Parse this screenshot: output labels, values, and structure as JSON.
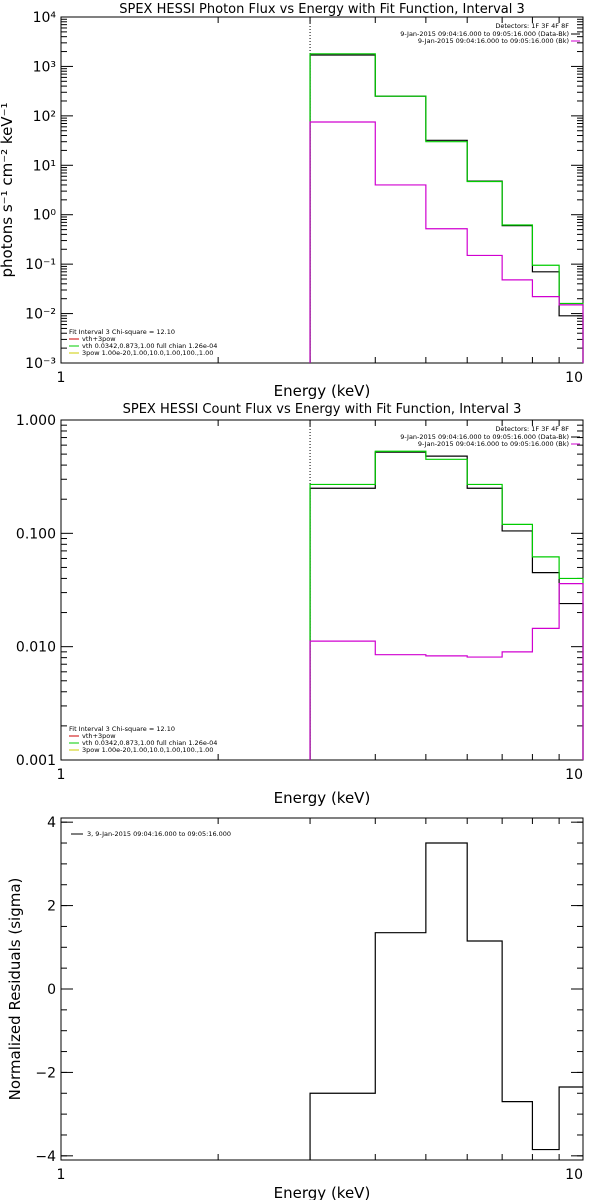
{
  "chart_data": [
    {
      "type": "line",
      "title": "SPEX HESSI Photon Flux vs Energy with Fit Function, Interval 3",
      "xlabel": "Energy (keV)",
      "ylabel": "photons s⁻¹ cm⁻² keV⁻¹",
      "xscale": "log",
      "yscale": "log",
      "xlim": [
        1,
        10
      ],
      "ylim": [
        0.001,
        10000
      ],
      "x_ticks": [
        {
          "value": 1,
          "label": "1"
        },
        {
          "value": 10,
          "label": "10"
        }
      ],
      "y_ticks": [
        {
          "value": 0.001,
          "label": "10⁻³"
        },
        {
          "value": 0.01,
          "label": "10⁻²"
        },
        {
          "value": 0.1,
          "label": "10⁻¹"
        },
        {
          "value": 1,
          "label": "10⁰"
        },
        {
          "value": 10,
          "label": "10¹"
        },
        {
          "value": 100,
          "label": "10²"
        },
        {
          "value": 1000,
          "label": "10³"
        },
        {
          "value": 10000,
          "label": "10⁴"
        }
      ],
      "vertical_marker": 3.0,
      "energy_edges": [
        3.0,
        4.0,
        5.0,
        6.0,
        7.0,
        8.0,
        9.0,
        10.0
      ],
      "legend_top_right": {
        "detectors": "Detectors: 1F 3F 4F 8F",
        "entries": [
          {
            "label": "9-Jan-2015 09:04:16.000 to 09:05:16.000 (Data-Bk)",
            "color": "#000000"
          },
          {
            "label": "9-Jan-2015 09:04:16.000 to 09:05:16.000 (Bk)",
            "color": "#d000d0"
          }
        ]
      },
      "legend_bottom_left": {
        "title": "Fit Interval 3   Chi-square = 12.10",
        "entries": [
          {
            "label": "vth+3pow",
            "color": "#cc0000"
          },
          {
            "label": "vth 0.0342,0.873,1.00  full chian 1.26e-04",
            "color": "#00cc00"
          },
          {
            "label": "3pow 1.00e-20,1.00,10.0,1.00,100.,1.00",
            "color": "#cccc00"
          }
        ]
      },
      "series": [
        {
          "name": "Data-Bk",
          "color": "#000000",
          "values": [
            1700,
            250,
            32,
            4.8,
            0.6,
            0.07,
            0.009
          ]
        },
        {
          "name": "vth",
          "color": "#00cc00",
          "values": [
            1800,
            250,
            30,
            4.7,
            0.62,
            0.095,
            0.016
          ]
        },
        {
          "name": "Bk",
          "color": "#d000d0",
          "values": [
            75,
            4,
            0.52,
            0.15,
            0.048,
            0.022,
            0.015
          ]
        }
      ]
    },
    {
      "type": "line",
      "title": "SPEX HESSI Count Flux vs Energy with Fit Function, Interval 3",
      "xlabel": "Energy (keV)",
      "xscale": "log",
      "yscale": "log",
      "xlim": [
        1,
        10
      ],
      "ylim": [
        0.001,
        1.0
      ],
      "x_ticks": [
        {
          "value": 1,
          "label": "1"
        },
        {
          "value": 10,
          "label": "10"
        }
      ],
      "y_ticks": [
        {
          "value": 0.001,
          "label": "0.001"
        },
        {
          "value": 0.01,
          "label": "0.010"
        },
        {
          "value": 0.1,
          "label": "0.100"
        },
        {
          "value": 1,
          "label": "1.000"
        }
      ],
      "vertical_marker": 3.0,
      "energy_edges": [
        3.0,
        4.0,
        5.0,
        6.0,
        7.0,
        8.0,
        9.0,
        10.0
      ],
      "legend_top_right": {
        "detectors": "Detectors: 1F 3F 4F 8F",
        "entries": [
          {
            "label": "9-Jan-2015 09:04:16.000 to 09:05:16.000 (Data-Bk)",
            "color": "#000000"
          },
          {
            "label": "9-Jan-2015 09:04:16.000 to 09:05:16.000 (Bk)",
            "color": "#d000d0"
          }
        ]
      },
      "legend_bottom_left": {
        "title": "Fit Interval 3   Chi-square = 12.10",
        "entries": [
          {
            "label": "vth+3pow",
            "color": "#cc0000"
          },
          {
            "label": "vth 0.0342,0.873,1.00  full chian 1.26e-04",
            "color": "#00cc00"
          },
          {
            "label": "3pow 1.00e-20,1.00,10.0,1.00,100.,1.00",
            "color": "#cccc00"
          }
        ]
      },
      "series": [
        {
          "name": "Data-Bk",
          "color": "#000000",
          "values": [
            0.25,
            0.52,
            0.48,
            0.25,
            0.105,
            0.045,
            0.024
          ]
        },
        {
          "name": "vth",
          "color": "#00cc00",
          "values": [
            0.27,
            0.53,
            0.45,
            0.27,
            0.12,
            0.062,
            0.04
          ]
        },
        {
          "name": "Bk",
          "color": "#d000d0",
          "values": [
            0.0112,
            0.0085,
            0.0083,
            0.0081,
            0.009,
            0.0145,
            0.036
          ]
        }
      ]
    },
    {
      "type": "line",
      "title": "",
      "xlabel": "Energy (keV)",
      "ylabel": "Normalized Residuals (sigma)",
      "xscale": "log",
      "yscale": "linear",
      "xlim": [
        1,
        10
      ],
      "ylim": [
        -4.1,
        4.1
      ],
      "x_ticks": [
        {
          "value": 1,
          "label": "1"
        },
        {
          "value": 10,
          "label": "10"
        }
      ],
      "y_ticks": [
        {
          "value": -4,
          "label": "−4"
        },
        {
          "value": -2,
          "label": "−2"
        },
        {
          "value": 0,
          "label": "0"
        },
        {
          "value": 2,
          "label": "2"
        },
        {
          "value": 4,
          "label": "4"
        }
      ],
      "energy_edges": [
        3.0,
        4.0,
        5.0,
        6.0,
        7.0,
        8.0,
        9.0,
        10.0
      ],
      "legend_top_left": {
        "entries": [
          {
            "label": "3,  9-Jan-2015 09:04:16.000 to 09:05:16.000",
            "color": "#000000"
          }
        ]
      },
      "series": [
        {
          "name": "3,  9-Jan-2015 09:04:16.000 to 09:05:16.000",
          "color": "#000000",
          "values": [
            -2.5,
            1.35,
            3.5,
            1.15,
            -2.7,
            -3.85,
            -2.35
          ]
        }
      ]
    }
  ]
}
